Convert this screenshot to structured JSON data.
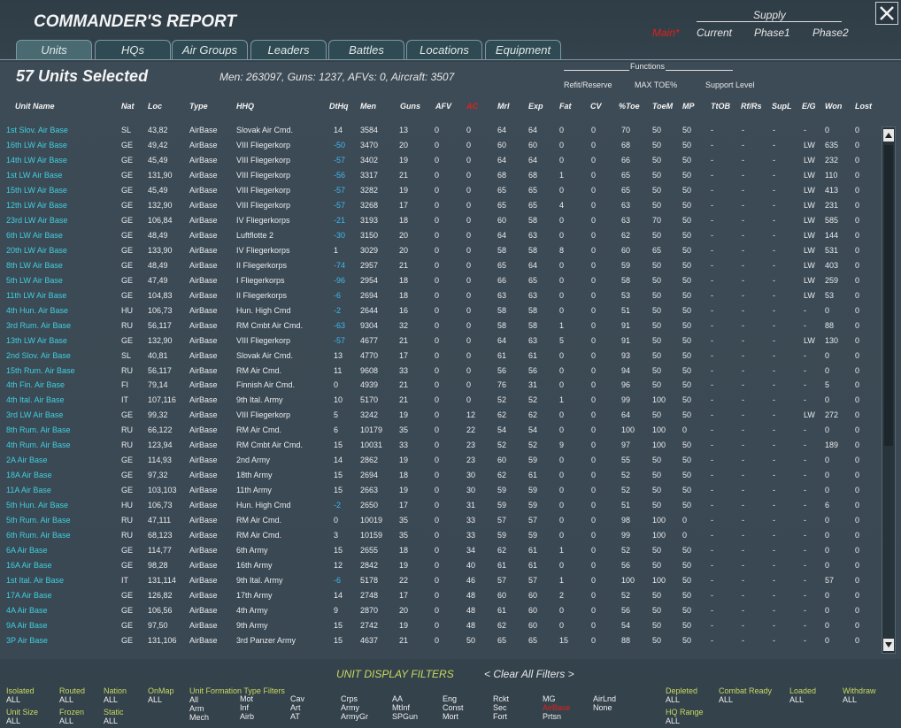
{
  "header": {
    "title": "COMMANDER'S REPORT"
  },
  "tabs": [
    "Units",
    "HQs",
    "Air Groups",
    "Leaders",
    "Battles",
    "Locations",
    "Equipment"
  ],
  "selection": {
    "title": "57 Units Selected",
    "stats": "Men: 263097, Guns: 1237, AFVs: 0, Aircraft: 3507"
  },
  "supply": {
    "label": "Supply",
    "main": "Main*",
    "items": [
      "Current",
      "Phase1",
      "Phase2"
    ]
  },
  "functions": {
    "label": "Functions",
    "items": [
      "Refit/Reserve",
      "MAX TOE%",
      "Support Level"
    ]
  },
  "table": {
    "columns": [
      "Unit Name",
      "Nat",
      "Loc",
      "Type",
      "HHQ",
      "DtHq",
      "Men",
      "Guns",
      "AFV",
      "AC",
      "Mrl",
      "Exp",
      "Fat",
      "CV",
      "%Toe",
      "ToeM",
      "MP",
      "TtOB",
      "Rf/Rs",
      "SupL",
      "E/G",
      "Won",
      "Lost"
    ],
    "rows": [
      [
        "1st Slov. Air Base",
        "SL",
        "43,82",
        "AirBase",
        "Slovak Air Cmd.",
        "14",
        "3584",
        "13",
        "0",
        "0",
        "64",
        "64",
        "0",
        "0",
        "70",
        "50",
        "50",
        "-",
        "-",
        "-",
        "-",
        "0",
        "0"
      ],
      [
        "16th LW Air Base",
        "GE",
        "49,42",
        "AirBase",
        "VIII Fliegerkorp",
        "-50",
        "3470",
        "20",
        "0",
        "0",
        "60",
        "60",
        "0",
        "0",
        "68",
        "50",
        "50",
        "-",
        "-",
        "-",
        "LW",
        "635",
        "0"
      ],
      [
        "14th LW Air Base",
        "GE",
        "45,49",
        "AirBase",
        "VIII Fliegerkorp",
        "-57",
        "3402",
        "19",
        "0",
        "0",
        "64",
        "64",
        "0",
        "0",
        "66",
        "50",
        "50",
        "-",
        "-",
        "-",
        "LW",
        "232",
        "0"
      ],
      [
        "1st LW Air Base",
        "GE",
        "131,90",
        "AirBase",
        "VIII Fliegerkorp",
        "-56",
        "3317",
        "21",
        "0",
        "0",
        "68",
        "68",
        "1",
        "0",
        "65",
        "50",
        "50",
        "-",
        "-",
        "-",
        "LW",
        "110",
        "0"
      ],
      [
        "15th LW Air Base",
        "GE",
        "45,49",
        "AirBase",
        "VIII Fliegerkorp",
        "-57",
        "3282",
        "19",
        "0",
        "0",
        "65",
        "65",
        "0",
        "0",
        "65",
        "50",
        "50",
        "-",
        "-",
        "-",
        "LW",
        "413",
        "0"
      ],
      [
        "12th LW Air Base",
        "GE",
        "132,90",
        "AirBase",
        "VIII Fliegerkorp",
        "-57",
        "3268",
        "17",
        "0",
        "0",
        "65",
        "65",
        "4",
        "0",
        "63",
        "50",
        "50",
        "-",
        "-",
        "-",
        "LW",
        "231",
        "0"
      ],
      [
        "23rd LW Air Base",
        "GE",
        "106,84",
        "AirBase",
        "IV Fliegerkorps",
        "-21",
        "3193",
        "18",
        "0",
        "0",
        "60",
        "58",
        "0",
        "0",
        "63",
        "70",
        "50",
        "-",
        "-",
        "-",
        "LW",
        "585",
        "0"
      ],
      [
        "6th LW Air Base",
        "GE",
        "48,49",
        "AirBase",
        "Luftflotte 2",
        "-30",
        "3150",
        "20",
        "0",
        "0",
        "64",
        "63",
        "0",
        "0",
        "62",
        "50",
        "50",
        "-",
        "-",
        "-",
        "LW",
        "144",
        "0"
      ],
      [
        "20th LW Air Base",
        "GE",
        "133,90",
        "AirBase",
        "IV Fliegerkorps",
        "1",
        "3029",
        "20",
        "0",
        "0",
        "58",
        "58",
        "8",
        "0",
        "60",
        "65",
        "50",
        "-",
        "-",
        "-",
        "LW",
        "531",
        "0"
      ],
      [
        "8th LW Air Base",
        "GE",
        "48,49",
        "AirBase",
        "II Fliegerkorps",
        "-74",
        "2957",
        "21",
        "0",
        "0",
        "65",
        "64",
        "0",
        "0",
        "59",
        "50",
        "50",
        "-",
        "-",
        "-",
        "LW",
        "403",
        "0"
      ],
      [
        "5th LW Air Base",
        "GE",
        "47,49",
        "AirBase",
        "I Fliegerkorps",
        "-96",
        "2954",
        "18",
        "0",
        "0",
        "66",
        "65",
        "0",
        "0",
        "58",
        "50",
        "50",
        "-",
        "-",
        "-",
        "LW",
        "259",
        "0"
      ],
      [
        "11th LW Air Base",
        "GE",
        "104,83",
        "AirBase",
        "II Fliegerkorps",
        "-6",
        "2694",
        "18",
        "0",
        "0",
        "63",
        "63",
        "0",
        "0",
        "53",
        "50",
        "50",
        "-",
        "-",
        "-",
        "LW",
        "53",
        "0"
      ],
      [
        "4th Hun. Air Base",
        "HU",
        "106,73",
        "AirBase",
        "Hun. High Cmd",
        "-2",
        "2644",
        "16",
        "0",
        "0",
        "58",
        "58",
        "0",
        "0",
        "51",
        "50",
        "50",
        "-",
        "-",
        "-",
        "-",
        "0",
        "0"
      ],
      [
        "3rd Rum. Air Base",
        "RU",
        "56,117",
        "AirBase",
        "RM Cmbt Air Cmd.",
        "-63",
        "9304",
        "32",
        "0",
        "0",
        "58",
        "58",
        "1",
        "0",
        "91",
        "50",
        "50",
        "-",
        "-",
        "-",
        "-",
        "88",
        "0"
      ],
      [
        "13th LW Air Base",
        "GE",
        "132,90",
        "AirBase",
        "VIII Fliegerkorp",
        "-57",
        "4677",
        "21",
        "0",
        "0",
        "64",
        "63",
        "5",
        "0",
        "91",
        "50",
        "50",
        "-",
        "-",
        "-",
        "LW",
        "130",
        "0"
      ],
      [
        "2nd Slov. Air Base",
        "SL",
        "40,81",
        "AirBase",
        "Slovak Air Cmd.",
        "13",
        "4770",
        "17",
        "0",
        "0",
        "61",
        "61",
        "0",
        "0",
        "93",
        "50",
        "50",
        "-",
        "-",
        "-",
        "-",
        "0",
        "0"
      ],
      [
        "15th Rum. Air Base",
        "RU",
        "56,117",
        "AirBase",
        "RM Air Cmd.",
        "11",
        "9608",
        "33",
        "0",
        "0",
        "56",
        "56",
        "0",
        "0",
        "94",
        "50",
        "50",
        "-",
        "-",
        "-",
        "-",
        "0",
        "0"
      ],
      [
        "4th Fin. Air Base",
        "FI",
        "79,14",
        "AirBase",
        "Finnish Air Cmd.",
        "0",
        "4939",
        "21",
        "0",
        "0",
        "76",
        "31",
        "0",
        "0",
        "96",
        "50",
        "50",
        "-",
        "-",
        "-",
        "-",
        "5",
        "0"
      ],
      [
        "4th Ital. Air Base",
        "IT",
        "107,116",
        "AirBase",
        "9th Ital. Army",
        "10",
        "5170",
        "21",
        "0",
        "0",
        "52",
        "52",
        "1",
        "0",
        "99",
        "100",
        "50",
        "-",
        "-",
        "-",
        "-",
        "0",
        "0"
      ],
      [
        "3rd LW Air Base",
        "GE",
        "99,32",
        "AirBase",
        "VIII Fliegerkorp",
        "5",
        "3242",
        "19",
        "0",
        "12",
        "62",
        "62",
        "0",
        "0",
        "64",
        "50",
        "50",
        "-",
        "-",
        "-",
        "LW",
        "272",
        "0"
      ],
      [
        "8th Rum. Air Base",
        "RU",
        "66,122",
        "AirBase",
        "RM Air Cmd.",
        "6",
        "10179",
        "35",
        "0",
        "22",
        "54",
        "54",
        "0",
        "0",
        "100",
        "100",
        "0",
        "-",
        "-",
        "-",
        "-",
        "0",
        "0"
      ],
      [
        "4th Rum. Air Base",
        "RU",
        "123,94",
        "AirBase",
        "RM Cmbt Air Cmd.",
        "15",
        "10031",
        "33",
        "0",
        "23",
        "52",
        "52",
        "9",
        "0",
        "97",
        "100",
        "50",
        "-",
        "-",
        "-",
        "-",
        "189",
        "0"
      ],
      [
        "2A Air Base",
        "GE",
        "114,93",
        "AirBase",
        "2nd Army",
        "14",
        "2862",
        "19",
        "0",
        "23",
        "60",
        "59",
        "0",
        "0",
        "55",
        "50",
        "50",
        "-",
        "-",
        "-",
        "-",
        "0",
        "0"
      ],
      [
        "18A Air Base",
        "GE",
        "97,32",
        "AirBase",
        "18th Army",
        "15",
        "2694",
        "18",
        "0",
        "30",
        "62",
        "61",
        "0",
        "0",
        "52",
        "50",
        "50",
        "-",
        "-",
        "-",
        "-",
        "0",
        "0"
      ],
      [
        "11A Air Base",
        "GE",
        "103,103",
        "AirBase",
        "11th Army",
        "15",
        "2663",
        "19",
        "0",
        "30",
        "59",
        "59",
        "0",
        "0",
        "52",
        "50",
        "50",
        "-",
        "-",
        "-",
        "-",
        "0",
        "0"
      ],
      [
        "5th Hun. Air Base",
        "HU",
        "106,73",
        "AirBase",
        "Hun. High Cmd",
        "-2",
        "2650",
        "17",
        "0",
        "31",
        "59",
        "59",
        "0",
        "0",
        "51",
        "50",
        "50",
        "-",
        "-",
        "-",
        "-",
        "6",
        "0"
      ],
      [
        "5th Rum. Air Base",
        "RU",
        "47,111",
        "AirBase",
        "RM Air Cmd.",
        "0",
        "10019",
        "35",
        "0",
        "33",
        "57",
        "57",
        "0",
        "0",
        "98",
        "100",
        "0",
        "-",
        "-",
        "-",
        "-",
        "0",
        "0"
      ],
      [
        "6th Rum. Air Base",
        "RU",
        "68,123",
        "AirBase",
        "RM Air Cmd.",
        "3",
        "10159",
        "35",
        "0",
        "33",
        "59",
        "59",
        "0",
        "0",
        "99",
        "100",
        "0",
        "-",
        "-",
        "-",
        "-",
        "0",
        "0"
      ],
      [
        "6A Air Base",
        "GE",
        "114,77",
        "AirBase",
        "6th Army",
        "15",
        "2655",
        "18",
        "0",
        "34",
        "62",
        "61",
        "1",
        "0",
        "52",
        "50",
        "50",
        "-",
        "-",
        "-",
        "-",
        "0",
        "0"
      ],
      [
        "16A Air Base",
        "GE",
        "98,28",
        "AirBase",
        "16th Army",
        "12",
        "2842",
        "19",
        "0",
        "40",
        "61",
        "61",
        "0",
        "0",
        "56",
        "50",
        "50",
        "-",
        "-",
        "-",
        "-",
        "0",
        "0"
      ],
      [
        "1st Ital. Air Base",
        "IT",
        "131,114",
        "AirBase",
        "9th Ital. Army",
        "-6",
        "5178",
        "22",
        "0",
        "46",
        "57",
        "57",
        "1",
        "0",
        "100",
        "100",
        "50",
        "-",
        "-",
        "-",
        "-",
        "57",
        "0"
      ],
      [
        "17A Air Base",
        "GE",
        "126,82",
        "AirBase",
        "17th Army",
        "14",
        "2748",
        "17",
        "0",
        "48",
        "60",
        "60",
        "2",
        "0",
        "52",
        "50",
        "50",
        "-",
        "-",
        "-",
        "-",
        "0",
        "0"
      ],
      [
        "4A Air Base",
        "GE",
        "106,56",
        "AirBase",
        "4th Army",
        "9",
        "2870",
        "20",
        "0",
        "48",
        "61",
        "60",
        "0",
        "0",
        "56",
        "50",
        "50",
        "-",
        "-",
        "-",
        "-",
        "0",
        "0"
      ],
      [
        "9A Air Base",
        "GE",
        "97,50",
        "AirBase",
        "9th Army",
        "15",
        "2742",
        "19",
        "0",
        "48",
        "62",
        "60",
        "0",
        "0",
        "54",
        "50",
        "50",
        "-",
        "-",
        "-",
        "-",
        "0",
        "0"
      ],
      [
        "3P Air Base",
        "GE",
        "131,106",
        "AirBase",
        "3rd Panzer Army",
        "15",
        "4637",
        "21",
        "0",
        "50",
        "65",
        "65",
        "15",
        "0",
        "88",
        "50",
        "50",
        "-",
        "-",
        "-",
        "-",
        "0",
        "0"
      ]
    ]
  },
  "filters": {
    "title": "UNIT DISPLAY FILTERS",
    "clear": "< Clear All Filters >",
    "items": [
      {
        "label": "Isolated",
        "value": "ALL"
      },
      {
        "label": "Routed",
        "value": "ALL"
      },
      {
        "label": "Nation",
        "value": "ALL"
      },
      {
        "label": "OnMap",
        "value": "ALL"
      },
      {
        "label": "Unit Size",
        "value": "ALL"
      },
      {
        "label": "Frozen",
        "value": "ALL"
      },
      {
        "label": "Static",
        "value": "ALL"
      },
      {
        "label": "Depleted",
        "value": "ALL"
      },
      {
        "label": "Combat Ready",
        "value": "ALL"
      },
      {
        "label": "Loaded",
        "value": "ALL"
      },
      {
        "label": "Withdraw",
        "value": "ALL"
      },
      {
        "label": "HQ Range",
        "value": "ALL"
      }
    ],
    "formation": {
      "title": "Unit  Formation  Type  Filters",
      "options": [
        [
          "All",
          "Arm",
          "Mech"
        ],
        [
          "Mot",
          "Inf",
          "Airb"
        ],
        [
          "Cav",
          "Art",
          "AT"
        ],
        [
          "Crps",
          "Army",
          "ArmyGr"
        ],
        [
          "AA",
          "MtInf",
          "SPGun"
        ],
        [
          "Eng",
          "Const",
          "Mort"
        ],
        [
          "Rckt",
          "Sec",
          "Fort"
        ],
        [
          "MG",
          "AirBase",
          "Prtsn"
        ],
        [
          "AirLnd",
          "None"
        ]
      ]
    }
  }
}
